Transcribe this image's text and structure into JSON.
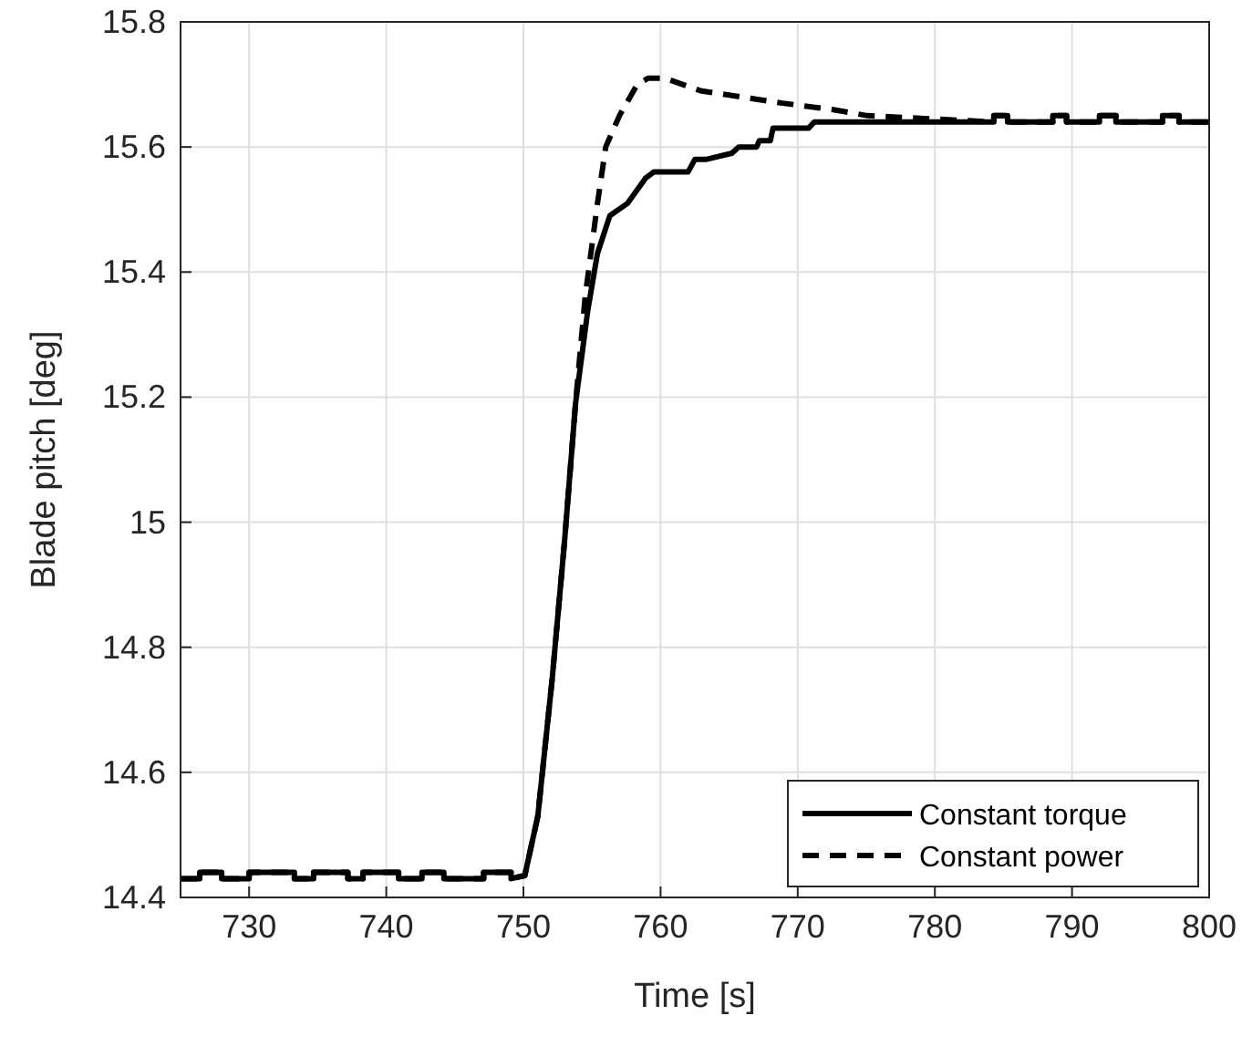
{
  "chart_data": {
    "type": "line",
    "xlabel": "Time [s]",
    "ylabel": "Blade pitch [deg]",
    "xlim": [
      725,
      800
    ],
    "ylim": [
      14.4,
      15.8
    ],
    "xticks": [
      730,
      740,
      750,
      760,
      770,
      780,
      790,
      800
    ],
    "yticks": [
      14.4,
      14.6,
      14.8,
      15,
      15.2,
      15.4,
      15.6,
      15.8
    ],
    "grid": true,
    "legend": "bottom right",
    "marker": "none",
    "series": [
      {
        "name": "Constant torque",
        "color": "#000000",
        "line_style": "solid",
        "x": [
          725,
          726.4,
          726.4,
          728,
          728,
          730,
          730,
          733.3,
          733.3,
          734.7,
          734.7,
          737.2,
          737.2,
          738.3,
          738.3,
          740.9,
          740.9,
          742.6,
          742.6,
          744.2,
          744.2,
          747.1,
          747.1,
          749.1,
          749.1,
          750.1,
          751.05,
          752.1,
          753,
          753.8,
          754.7,
          755.4,
          756.3,
          757.6,
          758.9,
          759.5,
          762,
          762.5,
          763.3,
          765.2,
          765.7,
          767,
          767.2,
          768,
          768.2,
          770.8,
          771.2,
          775.1,
          784.3,
          784.3,
          785.3,
          785.3,
          788.6,
          788.6,
          789.6,
          789.6,
          792,
          792,
          793.2,
          793.2,
          796.6,
          796.6,
          797.8,
          797.8,
          800
        ],
        "values": [
          14.43,
          14.43,
          14.44,
          14.44,
          14.43,
          14.43,
          14.44,
          14.44,
          14.43,
          14.43,
          14.44,
          14.44,
          14.43,
          14.43,
          14.44,
          14.44,
          14.43,
          14.43,
          14.44,
          14.44,
          14.43,
          14.43,
          14.44,
          14.44,
          14.43,
          14.435,
          14.53,
          14.75,
          14.97,
          15.19,
          15.34,
          15.43,
          15.49,
          15.51,
          15.55,
          15.56,
          15.56,
          15.58,
          15.58,
          15.59,
          15.6,
          15.6,
          15.61,
          15.61,
          15.63,
          15.63,
          15.64,
          15.64,
          15.64,
          15.65,
          15.65,
          15.64,
          15.64,
          15.65,
          15.65,
          15.64,
          15.64,
          15.65,
          15.65,
          15.64,
          15.64,
          15.65,
          15.65,
          15.64,
          15.64
        ]
      },
      {
        "name": "Constant power",
        "color": "#000000",
        "line_style": "dashed",
        "x": [
          725,
          726.4,
          726.4,
          728,
          728,
          730,
          730,
          733.3,
          733.3,
          734.7,
          734.7,
          737.2,
          737.2,
          738.3,
          738.3,
          740.9,
          740.9,
          742.6,
          742.6,
          744.2,
          744.2,
          747.1,
          747.1,
          749.1,
          749.1,
          750.1,
          751.05,
          752.1,
          753,
          753.8,
          754.5,
          755.4,
          756,
          757,
          758.3,
          759.1,
          760.3,
          761.6,
          762.9,
          765.9,
          768.9,
          772.5,
          775.1,
          784.3,
          784.3,
          785.3,
          785.3,
          788.6,
          788.6,
          789.6,
          789.6,
          792,
          792,
          793.2,
          793.2,
          796.6,
          796.6,
          797.8,
          797.8,
          800
        ],
        "values": [
          14.43,
          14.43,
          14.44,
          14.44,
          14.43,
          14.43,
          14.44,
          14.44,
          14.43,
          14.43,
          14.44,
          14.44,
          14.43,
          14.43,
          14.44,
          14.44,
          14.43,
          14.43,
          14.44,
          14.44,
          14.43,
          14.43,
          14.44,
          14.44,
          14.43,
          14.435,
          14.53,
          14.75,
          14.97,
          15.19,
          15.36,
          15.51,
          15.6,
          15.65,
          15.7,
          15.71,
          15.71,
          15.7,
          15.69,
          15.68,
          15.67,
          15.66,
          15.65,
          15.64,
          15.65,
          15.65,
          15.64,
          15.64,
          15.65,
          15.65,
          15.64,
          15.64,
          15.65,
          15.65,
          15.64,
          15.64,
          15.65,
          15.65,
          15.64,
          15.64
        ]
      }
    ]
  }
}
